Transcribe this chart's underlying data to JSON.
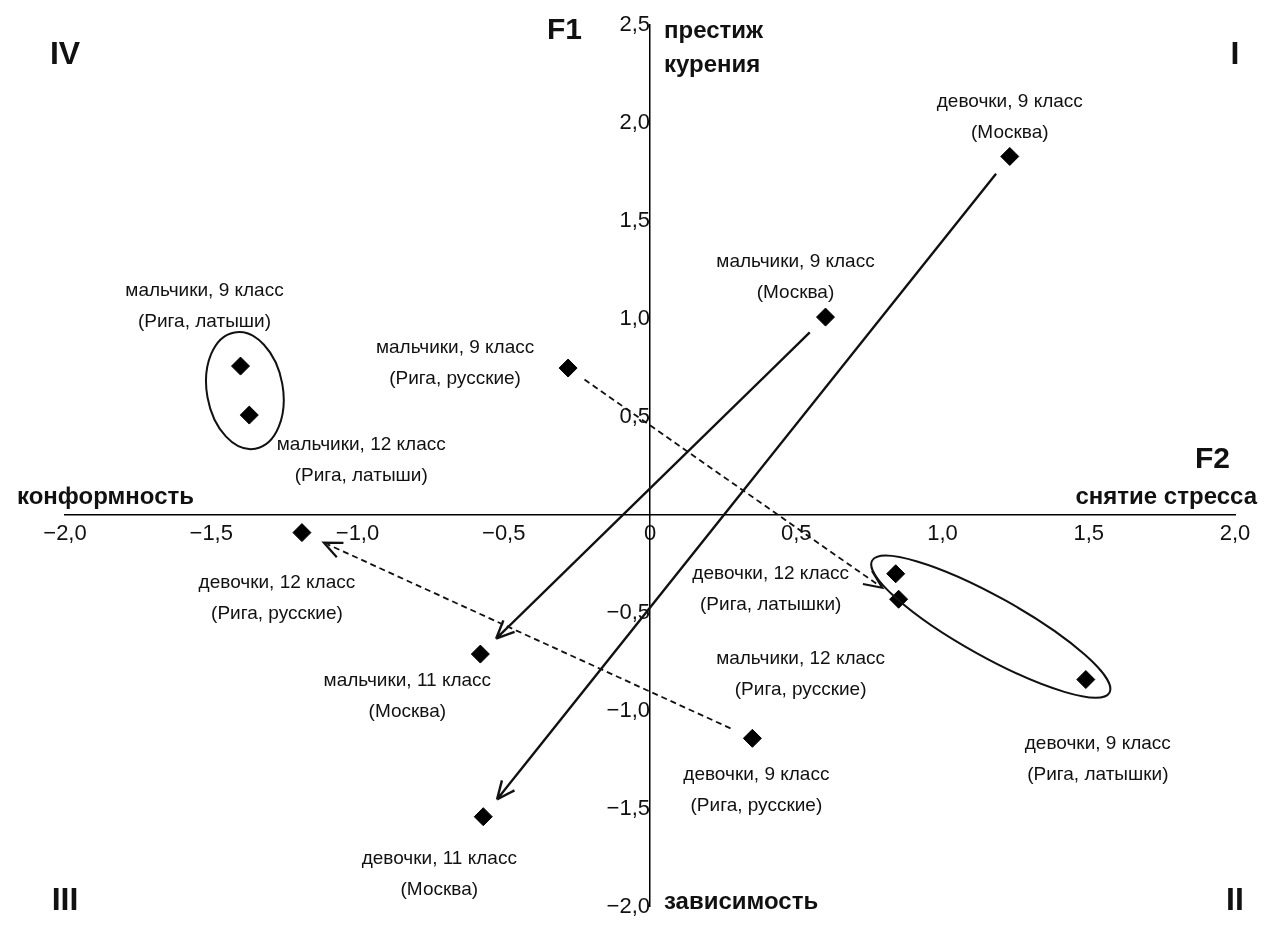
{
  "chart_data": {
    "type": "scatter",
    "xlabel": "F2",
    "ylabel": "F1",
    "series": [
      {
        "color": "#000000",
        "x": [
          1.23,
          0.6,
          -0.28,
          -1.4,
          -1.37,
          -1.19,
          -0.58,
          -0.57,
          0.35,
          0.84,
          0.85,
          1.49
        ],
        "values": [
          1.83,
          1.01,
          0.75,
          0.76,
          0.51,
          -0.09,
          -0.71,
          -1.54,
          -1.14,
          -0.3,
          -0.43,
          -0.84
        ]
      }
    ],
    "marker": "diamond",
    "grid": false,
    "xlim": [
      -2,
      2
    ],
    "ylim": [
      -2,
      2.5
    ],
    "xticks": [
      {
        "value": -2,
        "label": "−2,0"
      },
      {
        "value": -1.5,
        "label": "−1,5"
      },
      {
        "value": -1,
        "label": "−1,0"
      },
      {
        "value": -0.5,
        "label": "−0,5"
      },
      0,
      {
        "value": 0.5,
        "label": "0,5"
      },
      {
        "value": 1,
        "label": "1,0"
      },
      {
        "value": 1.5,
        "label": "1,5"
      },
      {
        "value": 2,
        "label": "2,0"
      }
    ],
    "yticks": [
      {
        "value": -2,
        "label": "−2,0"
      },
      {
        "value": -1.5,
        "label": "−1,5"
      },
      {
        "value": -1,
        "label": "−1,0"
      },
      {
        "value": -0.5,
        "label": "−0,5"
      },
      {
        "value": 0.5,
        "label": "0,5"
      },
      {
        "value": 1,
        "label": "1,0"
      },
      {
        "value": 1.5,
        "label": "1,5"
      },
      {
        "value": 2,
        "label": "2,0"
      },
      {
        "value": 2.5,
        "label": "2,5"
      }
    ],
    "annotations": [
      {
        "text": "девочки, 9 класс\n(Москва)",
        "x": 1.23,
        "y": 1.83
      },
      {
        "text": "мальчики, 9 класс\n(Москва)",
        "x": 0.6,
        "y": 1.01
      },
      {
        "text": "мальчики, 9 класс\n(Рига, русские)",
        "x": -0.28,
        "y": 0.75
      },
      {
        "text": "мальчики, 9 класс\n(Рига, латыши)",
        "x": -1.4,
        "y": 0.76
      },
      {
        "text": "мальчики, 12 класс\n(Рига, латыши)",
        "x": -1.37,
        "y": 0.51
      },
      {
        "text": "девочки, 12 класс\n(Рига, русские)",
        "x": -1.19,
        "y": -0.09
      },
      {
        "text": "мальчики, 11 класс\n(Москва)",
        "x": -0.58,
        "y": -0.71
      },
      {
        "text": "девочки, 11 класс\n(Москва)",
        "x": -0.57,
        "y": -1.54
      },
      {
        "text": "девочки, 9 класс\n(Рига, русские)",
        "x": 0.35,
        "y": -1.14
      },
      {
        "text": "девочки, 12 класс\n(Рига, латышки)",
        "x": 0.84,
        "y": -0.3
      },
      {
        "text": "мальчики, 12 класс\n(Рига, русские)",
        "x": 0.85,
        "y": -0.43
      },
      {
        "text": "девочки, 9 класс\n(Рига, латышки)",
        "x": 1.49,
        "y": -0.84
      },
      "престиж\nкурения",
      "снятие стресса",
      "зависимость",
      "конформность",
      "I",
      "II",
      "III",
      "IV"
    ]
  }
}
